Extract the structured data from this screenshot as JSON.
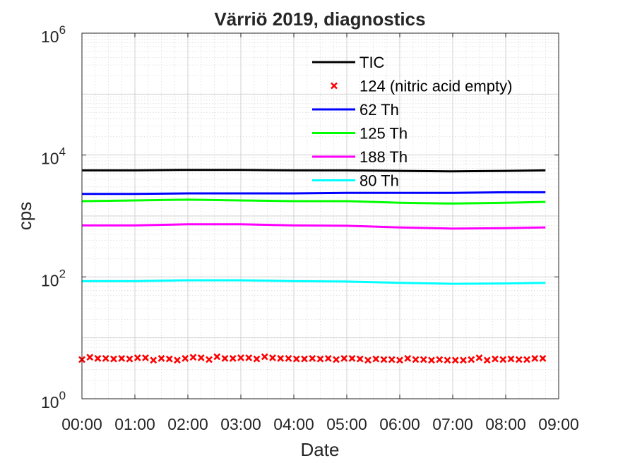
{
  "chart_data": {
    "type": "line",
    "title": "Värriö 2019, diagnostics",
    "xlabel": "Date",
    "ylabel": "cps",
    "yscale": "log",
    "ylim": [
      1,
      1000000
    ],
    "xlim": [
      "00:00",
      "09:00"
    ],
    "x_tick_labels": [
      "00:00",
      "01:00",
      "02:00",
      "03:00",
      "04:00",
      "05:00",
      "06:00",
      "07:00",
      "08:00",
      "09:00"
    ],
    "y_ticks": [
      {
        "base": "10",
        "exp": "0",
        "value": 1
      },
      {
        "base": "10",
        "exp": "2",
        "value": 100
      },
      {
        "base": "10",
        "exp": "4",
        "value": 10000
      },
      {
        "base": "10",
        "exp": "6",
        "value": 1000000
      }
    ],
    "grid": true,
    "legend_position": "top-right",
    "x": [
      "00:00",
      "01:00",
      "02:00",
      "03:00",
      "04:00",
      "05:00",
      "06:00",
      "07:00",
      "08:00",
      "08:45"
    ],
    "series": [
      {
        "name": "TIC",
        "color": "#000000",
        "style": "line",
        "values": [
          5600,
          5600,
          5700,
          5700,
          5600,
          5600,
          5500,
          5400,
          5500,
          5600
        ]
      },
      {
        "name": "62 Th",
        "color": "#0000ff",
        "style": "line",
        "values": [
          2300,
          2300,
          2350,
          2350,
          2350,
          2400,
          2400,
          2400,
          2450,
          2450
        ]
      },
      {
        "name": "125 Th",
        "color": "#00ff00",
        "style": "line",
        "values": [
          1750,
          1800,
          1850,
          1800,
          1750,
          1750,
          1650,
          1600,
          1650,
          1700
        ]
      },
      {
        "name": "188 Th",
        "color": "#ff00ff",
        "style": "line",
        "values": [
          700,
          700,
          730,
          730,
          700,
          690,
          650,
          620,
          630,
          650
        ]
      },
      {
        "name": "80 Th",
        "color": "#00ffff",
        "style": "line",
        "values": [
          85,
          85,
          88,
          88,
          85,
          84,
          80,
          77,
          78,
          80
        ]
      }
    ],
    "scatter_series": {
      "name": "124 (nitric acid empty)",
      "color": "#ff0000",
      "marker": "x",
      "x_hours": [
        0.0,
        0.15,
        0.3,
        0.45,
        0.6,
        0.75,
        0.9,
        1.05,
        1.2,
        1.35,
        1.5,
        1.65,
        1.8,
        1.95,
        2.1,
        2.25,
        2.4,
        2.55,
        2.7,
        2.85,
        3.0,
        3.15,
        3.3,
        3.45,
        3.6,
        3.75,
        3.9,
        4.05,
        4.2,
        4.35,
        4.5,
        4.65,
        4.8,
        4.95,
        5.1,
        5.25,
        5.4,
        5.55,
        5.7,
        5.85,
        6.0,
        6.15,
        6.3,
        6.45,
        6.6,
        6.75,
        6.9,
        7.05,
        7.2,
        7.35,
        7.5,
        7.65,
        7.8,
        7.95,
        8.1,
        8.25,
        8.4,
        8.55,
        8.7
      ],
      "values": [
        4.4,
        4.8,
        4.6,
        4.6,
        4.5,
        4.6,
        4.5,
        4.7,
        4.7,
        4.3,
        4.6,
        4.5,
        4.3,
        4.6,
        4.8,
        4.7,
        4.4,
        4.9,
        4.6,
        4.6,
        4.7,
        4.7,
        4.5,
        4.9,
        4.7,
        4.6,
        4.6,
        4.5,
        4.5,
        4.6,
        4.5,
        4.6,
        4.4,
        4.6,
        4.6,
        4.5,
        4.3,
        4.5,
        4.4,
        4.4,
        4.3,
        4.6,
        4.4,
        4.4,
        4.3,
        4.4,
        4.3,
        4.3,
        4.3,
        4.4,
        4.7,
        4.3,
        4.5,
        4.4,
        4.5,
        4.4,
        4.4,
        4.6,
        4.6
      ]
    }
  }
}
